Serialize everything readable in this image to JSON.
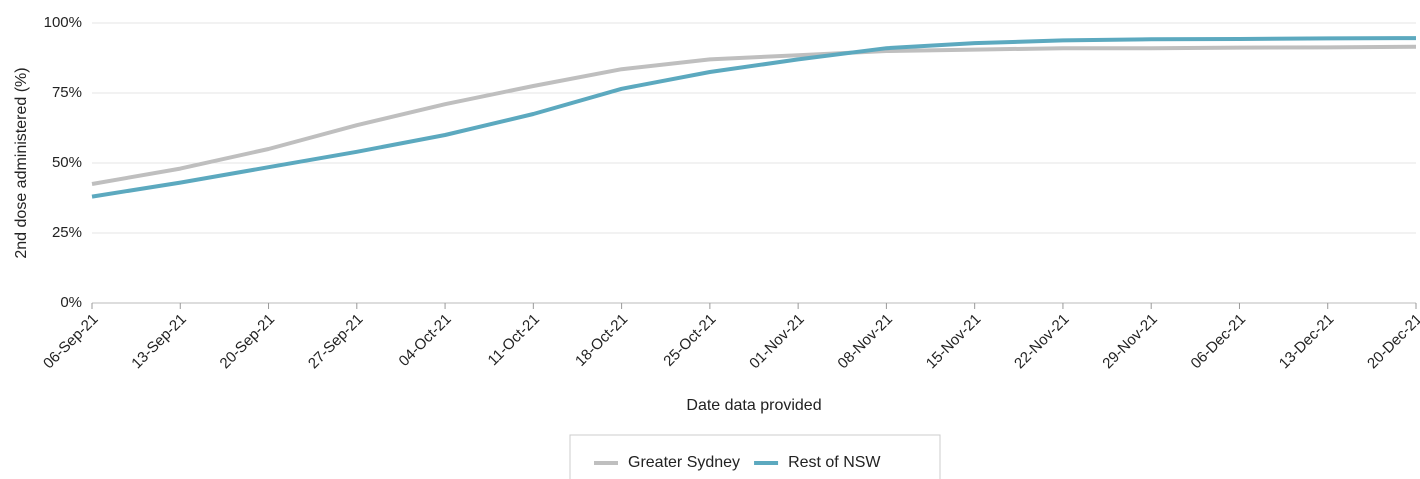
{
  "chart_data": {
    "type": "line",
    "x_label": "Date data provided",
    "y_label": "2nd dose administered (%)",
    "categories": [
      "06-Sep-21",
      "13-Sep-21",
      "20-Sep-21",
      "27-Sep-21",
      "04-Oct-21",
      "11-Oct-21",
      "18-Oct-21",
      "25-Oct-21",
      "01-Nov-21",
      "08-Nov-21",
      "15-Nov-21",
      "22-Nov-21",
      "29-Nov-21",
      "06-Dec-21",
      "13-Dec-21",
      "20-Dec-21"
    ],
    "series": [
      {
        "name": "Greater Sydney",
        "color": "#bfbfbf",
        "values": [
          42.5,
          48,
          55,
          63.5,
          71,
          77.5,
          83.5,
          87,
          88.5,
          90,
          90.5,
          91,
          91,
          91.2,
          91.3,
          91.5
        ]
      },
      {
        "name": "Rest of NSW",
        "color": "#5ca9bf",
        "values": [
          38,
          43,
          48.5,
          54,
          60,
          67.5,
          76.5,
          82.5,
          87,
          91,
          92.8,
          93.8,
          94.2,
          94.3,
          94.5,
          94.6
        ]
      }
    ],
    "ylim": [
      0,
      100
    ],
    "yticks": [
      {
        "value": 0,
        "label": "0%"
      },
      {
        "value": 25,
        "label": "25%"
      },
      {
        "value": 50,
        "label": "50%"
      },
      {
        "value": 75,
        "label": "75%"
      },
      {
        "value": 100,
        "label": "100%"
      }
    ],
    "grid": true,
    "legend": "bottom"
  }
}
